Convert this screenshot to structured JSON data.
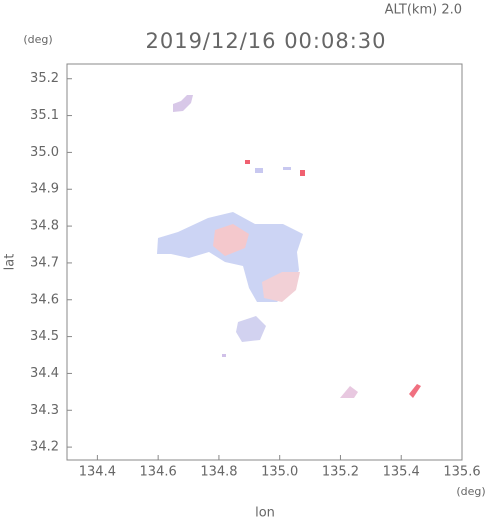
{
  "chart_data": {
    "type": "map",
    "title": "2019/12/16 00:08:30",
    "subtitle": "ALT(km) 2.0",
    "x_label": "lon",
    "x_unit": "(deg)",
    "y_label": "lat",
    "y_unit": "(deg)",
    "xlim": [
      134.3,
      135.6
    ],
    "xticks": [
      134.4,
      134.6,
      134.8,
      {
        "value": 135.0,
        "label": "135.0"
      },
      135.2,
      135.4,
      135.6
    ],
    "ylim": [
      34.165,
      35.24
    ],
    "yticks": [
      34.2,
      34.3,
      34.4,
      34.5,
      34.6,
      34.7,
      34.8,
      34.9,
      {
        "value": 35.0,
        "label": "35.0"
      },
      35.1,
      35.2
    ]
  }
}
